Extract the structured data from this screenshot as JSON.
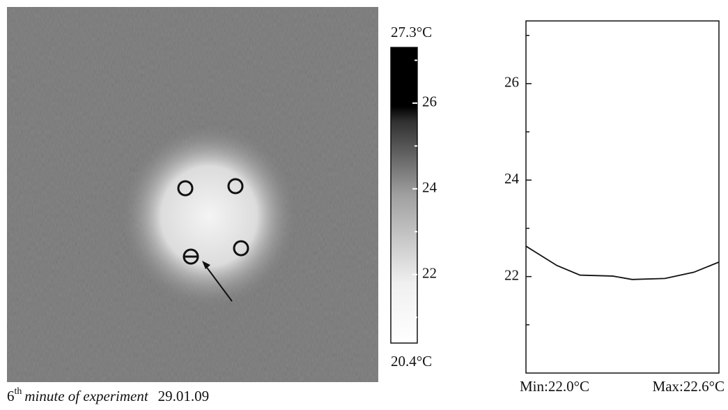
{
  "colorbar": {
    "min": {
      "value": 20.4,
      "label": "20.4°C"
    },
    "max": {
      "value": 27.3,
      "label": "27.3°C"
    },
    "ticks": [
      22,
      24,
      26
    ],
    "minor_ticks": [
      21,
      23,
      25,
      27
    ]
  },
  "caption": {
    "number": "6",
    "suffix": "th",
    "text": "minute of experiment",
    "date": "29.01.09"
  },
  "chart_data": {
    "type": "line",
    "x": [
      0,
      0.16,
      0.28,
      0.45,
      0.55,
      0.72,
      0.87,
      1
    ],
    "values": [
      22.63,
      22.23,
      22.03,
      22.01,
      21.94,
      21.96,
      22.09,
      22.3
    ],
    "color": "#111111",
    "xlim": [
      0,
      1
    ],
    "ylim": [
      20,
      27.3
    ],
    "yticks": [
      22,
      24,
      26
    ],
    "yminor_ticks": [
      21,
      23,
      25,
      27
    ],
    "min_label": "Min:22.0°C",
    "max_label": "Max:22.6°C"
  }
}
